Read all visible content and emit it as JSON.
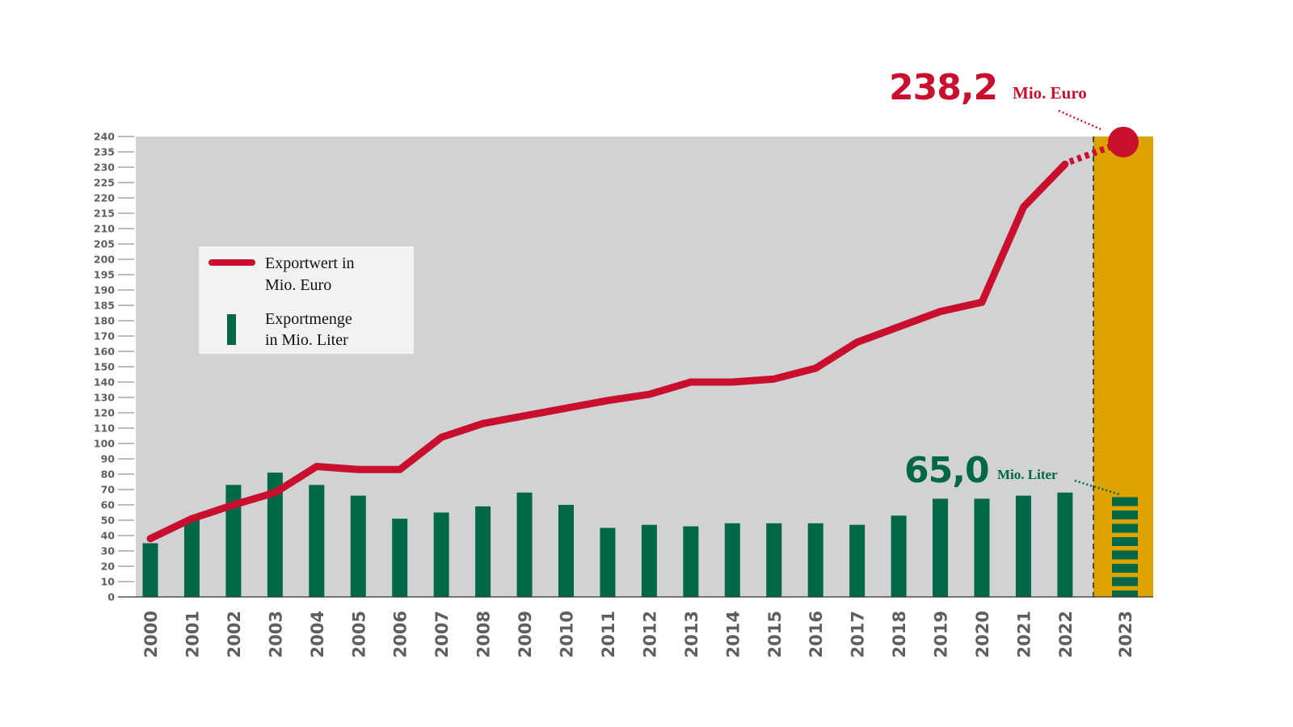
{
  "chart_data": {
    "type": "bar+line",
    "title": "",
    "xlabel": "",
    "ylabel": "",
    "ylim": [
      0,
      240
    ],
    "y_axis_note": "non-linear scale: steps of 10 from 0 to 180, steps of 5 from 180 to 240",
    "y_ticks": [
      "0",
      "10",
      "20",
      "30",
      "40",
      "50",
      "60",
      "70",
      "80",
      "90",
      "100",
      "110",
      "120",
      "130",
      "140",
      "150",
      "160",
      "170",
      "180",
      "185",
      "190",
      "195",
      "200",
      "205",
      "210",
      "215",
      "220",
      "225",
      "230",
      "235",
      "240"
    ],
    "y_tick_values": [
      0,
      10,
      20,
      30,
      40,
      50,
      60,
      70,
      80,
      90,
      100,
      110,
      120,
      130,
      140,
      150,
      160,
      170,
      180,
      185,
      190,
      195,
      200,
      205,
      210,
      215,
      220,
      225,
      230,
      235,
      240
    ],
    "categories": [
      "2000",
      "2001",
      "2002",
      "2003",
      "2004",
      "2005",
      "2006",
      "2007",
      "2008",
      "2009",
      "2010",
      "2011",
      "2012",
      "2013",
      "2014",
      "2015",
      "2016",
      "2017",
      "2018",
      "2019",
      "2020",
      "2021",
      "2022",
      "2023"
    ],
    "series": [
      {
        "name": "Exportwert in Mio. Euro",
        "type": "line",
        "color": "#C8102E",
        "values": [
          38,
          51,
          60,
          68,
          85,
          83,
          83,
          104,
          113,
          118,
          123,
          128,
          132,
          140,
          140,
          142,
          149,
          166,
          176,
          183,
          186,
          217,
          231,
          238.2
        ]
      },
      {
        "name": "Exportmenge in Mio. Liter",
        "type": "bar",
        "color": "#006747",
        "values": [
          35,
          51,
          73,
          81,
          73,
          66,
          51,
          55,
          59,
          68,
          60,
          45,
          47,
          46,
          48,
          48,
          48,
          47,
          53,
          64,
          64,
          66,
          68,
          65.0
        ]
      }
    ],
    "legend": {
      "placement": "top-left",
      "items": [
        {
          "line1": "Exportwert in",
          "line2": "Mio. Euro"
        },
        {
          "line1": "Exportmenge",
          "line2": "in Mio. Liter"
        }
      ]
    },
    "annotations": {
      "value_highlight": {
        "number": "238,2",
        "unit": "Mio. Euro"
      },
      "volume_highlight": {
        "number": "65,0",
        "unit": "Mio. Liter"
      }
    },
    "highlight_year": "2023",
    "colors": {
      "plot_bg": "#D1D2D4",
      "highlight_bg": "#DCA200",
      "line": "#C8102E",
      "bar": "#006747",
      "legend_bg": "#F2F2F2"
    },
    "grid": false
  }
}
